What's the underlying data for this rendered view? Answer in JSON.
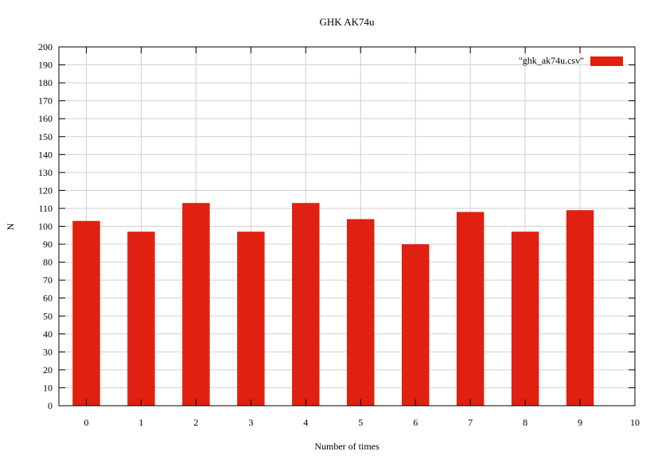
{
  "chart_data": {
    "type": "bar",
    "title": "GHK AK74u",
    "xlabel": "Number of times",
    "ylabel": "N",
    "xlim": [
      -0.5,
      10
    ],
    "ylim": [
      0,
      200
    ],
    "x_ticks": [
      0,
      1,
      2,
      3,
      4,
      5,
      6,
      7,
      8,
      9,
      10
    ],
    "y_ticks": [
      0,
      10,
      20,
      30,
      40,
      50,
      60,
      70,
      80,
      90,
      100,
      110,
      120,
      130,
      140,
      150,
      160,
      170,
      180,
      190,
      200
    ],
    "categories": [
      0,
      1,
      2,
      3,
      4,
      5,
      6,
      7,
      8,
      9
    ],
    "series": [
      {
        "name": "\"ghk_ak74u.csv\"",
        "color": "#e02010",
        "values": [
          103,
          97,
          113,
          97,
          113,
          104,
          90,
          108,
          97,
          109
        ]
      }
    ],
    "grid": true,
    "legend_position": "top-right"
  }
}
